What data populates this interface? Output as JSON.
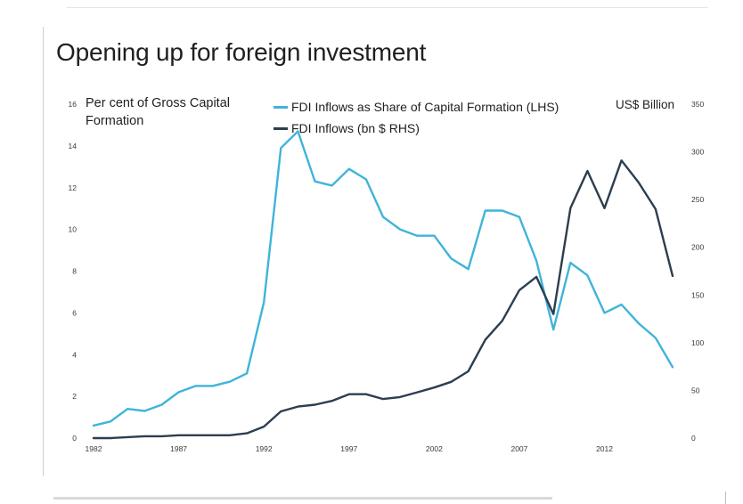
{
  "chart_data": {
    "type": "line",
    "title": "Opening up for foreign investment",
    "ylabel_left": "Per cent of Gross Capital Formation",
    "ylabel_right": "US$ Billion",
    "left_axis": {
      "range": [
        0,
        16
      ],
      "ticks": [
        "0",
        "2",
        "4",
        "6",
        "8",
        "10",
        "12",
        "14",
        "16"
      ]
    },
    "right_axis": {
      "range": [
        0,
        350
      ],
      "ticks": [
        "0",
        "50",
        "100",
        "150",
        "200",
        "250",
        "300",
        "350"
      ]
    },
    "x_ticks": [
      "1982",
      "1987",
      "1992",
      "1997",
      "2002",
      "2007",
      "2012"
    ],
    "x": [
      1982,
      1983,
      1984,
      1985,
      1986,
      1987,
      1988,
      1989,
      1990,
      1991,
      1992,
      1993,
      1994,
      1995,
      1996,
      1997,
      1998,
      1999,
      2000,
      2001,
      2002,
      2003,
      2004,
      2005,
      2006,
      2007,
      2008,
      2009,
      2010,
      2011,
      2012,
      2013,
      2014,
      2015,
      2016
    ],
    "series": [
      {
        "name": "FDI Inflows as Share of Capital Formation (LHS)",
        "axis": "left",
        "color": "#3fb4da",
        "values": [
          0.6,
          0.8,
          1.4,
          1.3,
          1.6,
          2.2,
          2.5,
          2.5,
          2.7,
          3.1,
          6.5,
          13.9,
          14.7,
          12.3,
          12.1,
          12.9,
          12.4,
          10.6,
          10.0,
          9.7,
          9.7,
          8.6,
          8.1,
          10.9,
          10.9,
          10.6,
          8.5,
          5.2,
          8.4,
          7.8,
          6.0,
          6.4,
          5.5,
          4.8,
          3.4
        ]
      },
      {
        "name": "FDI Inflows (bn $ RHS)",
        "axis": "right",
        "color": "#2c3e50",
        "values": [
          0,
          0,
          1,
          2,
          2,
          3,
          3,
          3,
          3,
          5,
          12,
          28,
          33,
          35,
          39,
          46,
          46,
          41,
          43,
          48,
          53,
          59,
          70,
          103,
          123,
          155,
          169,
          130,
          241,
          280,
          241,
          291,
          268,
          240,
          170
        ]
      }
    ]
  }
}
